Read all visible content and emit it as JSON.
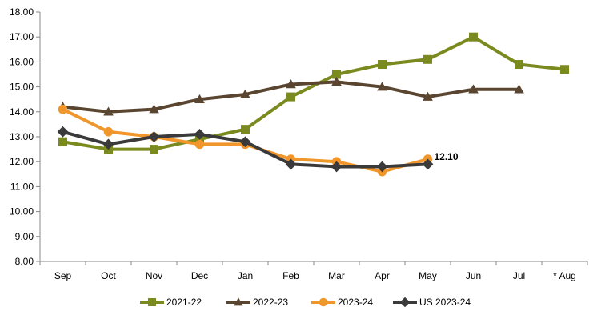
{
  "chart_data": {
    "type": "line",
    "categories": [
      "Sep",
      "Oct",
      "Nov",
      "Dec",
      "Jan",
      "Feb",
      "Mar",
      "Apr",
      "May",
      "Jun",
      "Jul",
      "* Aug"
    ],
    "ylim": [
      8.0,
      18.0
    ],
    "yticks": [
      "8.00",
      "9.00",
      "10.00",
      "11.00",
      "12.00",
      "13.00",
      "14.00",
      "15.00",
      "16.00",
      "17.00",
      "18.00"
    ],
    "grid": false,
    "legend_position": "bottom",
    "series": [
      {
        "name": "2021-22",
        "color": "#7a8a1e",
        "marker": "square",
        "values": [
          12.8,
          12.5,
          12.5,
          12.9,
          13.3,
          14.6,
          15.5,
          15.9,
          16.1,
          17.0,
          15.9,
          15.7
        ]
      },
      {
        "name": "2022-23",
        "color": "#5a4630",
        "marker": "triangle",
        "values": [
          14.2,
          14.0,
          14.1,
          14.5,
          14.7,
          15.1,
          15.2,
          15.0,
          14.6,
          14.9,
          14.9,
          null
        ]
      },
      {
        "name": "2023-24",
        "color": "#f0962a",
        "marker": "circle",
        "values": [
          14.1,
          13.2,
          13.0,
          12.7,
          12.7,
          12.1,
          12.0,
          11.6,
          12.1,
          null,
          null,
          null
        ]
      },
      {
        "name": "US 2023-24",
        "color": "#3a3a3a",
        "marker": "diamond",
        "values": [
          13.2,
          12.7,
          13.0,
          13.1,
          12.8,
          11.9,
          11.8,
          11.8,
          11.9,
          null,
          null,
          null
        ]
      }
    ],
    "annotations": [
      {
        "text": "12.10",
        "category": "May",
        "value": 12.1
      }
    ]
  }
}
